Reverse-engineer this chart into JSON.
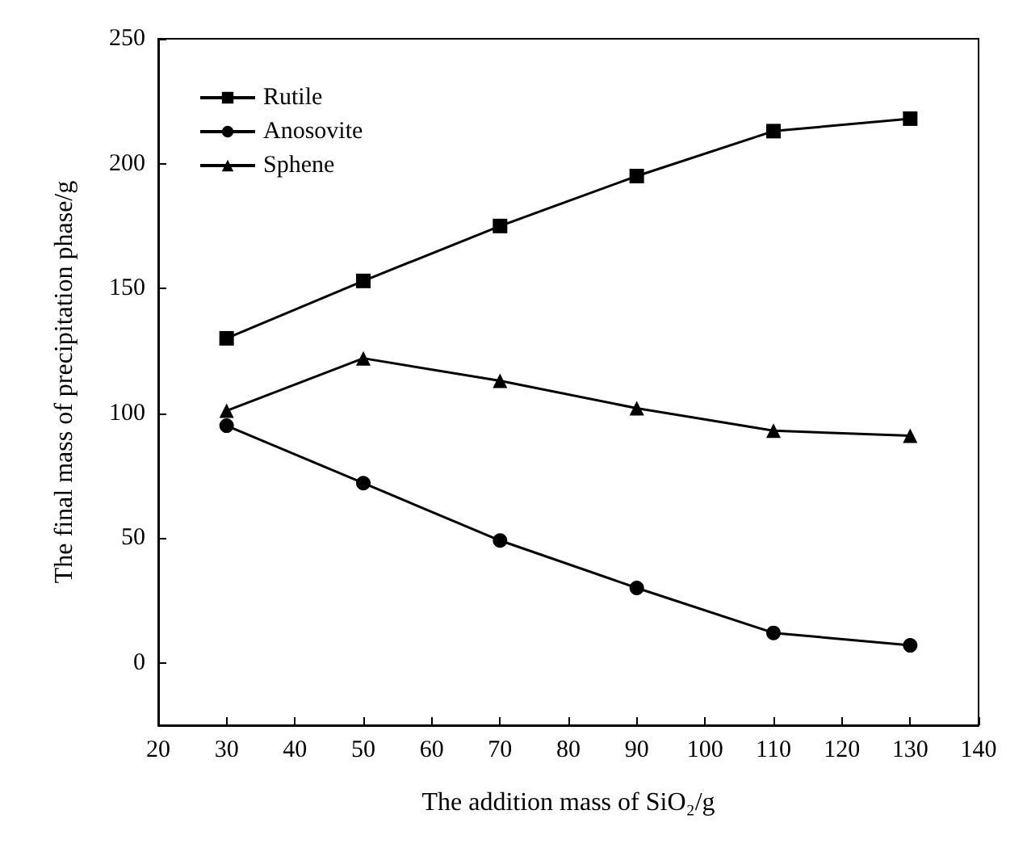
{
  "chart_data": {
    "type": "line",
    "xlabel": "The addition mass of SiO₂/g",
    "ylabel": "The final mass of precipitation phase/g",
    "x": [
      30,
      50,
      70,
      90,
      110,
      130
    ],
    "series": [
      {
        "name": "Rutile",
        "color": "#000000",
        "marker": "square",
        "values": [
          130,
          153,
          175,
          195,
          213,
          218
        ]
      },
      {
        "name": "Anosovite",
        "color": "#000000",
        "marker": "circle",
        "values": [
          95,
          72,
          49,
          30,
          12,
          7
        ]
      },
      {
        "name": "Sphene",
        "color": "#000000",
        "marker": "triangle",
        "values": [
          101,
          122,
          113,
          102,
          93,
          91
        ]
      }
    ],
    "xlim": [
      20,
      140
    ],
    "xticks": [
      20,
      30,
      40,
      50,
      60,
      70,
      80,
      90,
      100,
      110,
      120,
      130,
      140
    ],
    "ylim": [
      -25,
      250
    ],
    "yticks": [
      0,
      50,
      100,
      150,
      200,
      250
    ],
    "grid": false,
    "legend": "top left",
    "line_style": "solid"
  }
}
